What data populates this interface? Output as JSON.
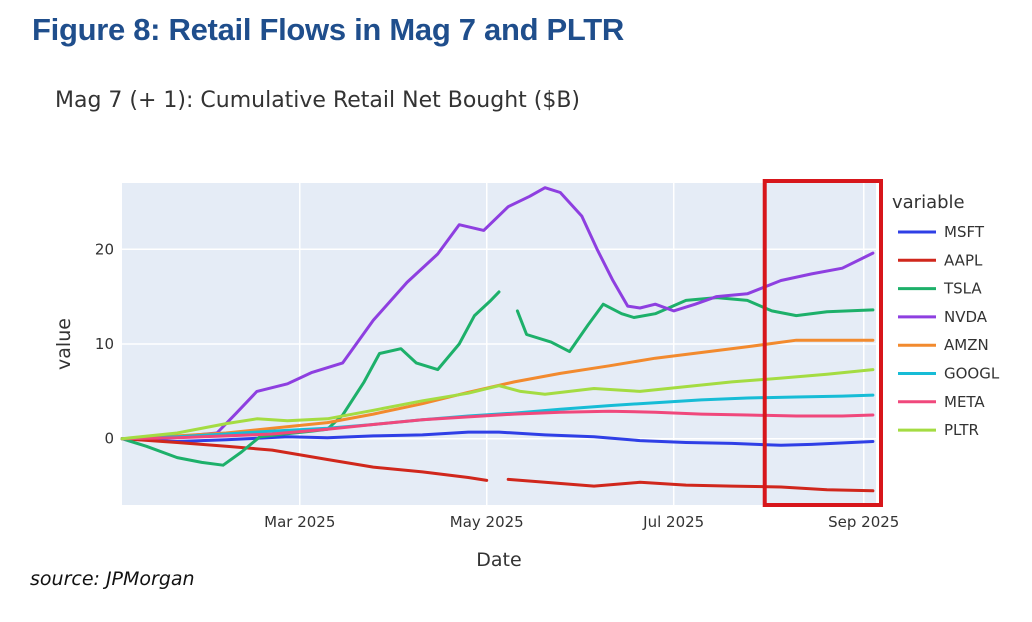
{
  "figure_title": "Figure 8: Retail Flows in Mag 7 and PLTR",
  "source": "source: JPMorgan",
  "colors": {
    "plot_bg": "#e5ecf6",
    "grid": "#ffffff",
    "highlight_box": "#d7161b",
    "title": "#1f4e8c"
  },
  "chart_data": {
    "type": "line",
    "title": "Mag 7 (+ 1): Cumulative Retail Net Bought ($B)",
    "xlabel": "Date",
    "ylabel": "value",
    "legend_title": "variable",
    "legend_position": "right",
    "grid": true,
    "xlim": [
      "2025-01-02",
      "2025-09-05"
    ],
    "ylim": [
      -7,
      27
    ],
    "xticks": [
      {
        "date": "2025-03-01",
        "label": "Mar 2025"
      },
      {
        "date": "2025-05-01",
        "label": "May 2025"
      },
      {
        "date": "2025-07-01",
        "label": "Jul 2025"
      },
      {
        "date": "2025-09-01",
        "label": "Sep 2025"
      }
    ],
    "yticks": [
      0,
      10,
      20
    ],
    "highlight_range": [
      "2025-08-01",
      "2025-09-05"
    ],
    "series": [
      {
        "name": "MSFT",
        "color": "#2f3fe6",
        "points": [
          [
            "2025-01-02",
            0
          ],
          [
            "2025-01-20",
            -0.3
          ],
          [
            "2025-02-05",
            -0.1
          ],
          [
            "2025-02-25",
            0.2
          ],
          [
            "2025-03-10",
            0.1
          ],
          [
            "2025-03-25",
            0.3
          ],
          [
            "2025-04-10",
            0.4
          ],
          [
            "2025-04-25",
            0.7
          ],
          [
            "2025-05-05",
            0.7
          ],
          [
            "2025-05-20",
            0.4
          ],
          [
            "2025-06-05",
            0.2
          ],
          [
            "2025-06-20",
            -0.2
          ],
          [
            "2025-07-05",
            -0.4
          ],
          [
            "2025-07-20",
            -0.5
          ],
          [
            "2025-08-05",
            -0.7
          ],
          [
            "2025-08-15",
            -0.6
          ],
          [
            "2025-09-04",
            -0.3
          ]
        ]
      },
      {
        "name": "AAPL",
        "color": "#d0271c",
        "points": [
          [
            "2025-01-02",
            0
          ],
          [
            "2025-01-20",
            -0.4
          ],
          [
            "2025-02-05",
            -0.8
          ],
          [
            "2025-02-20",
            -1.2
          ],
          [
            "2025-03-10",
            -2.2
          ],
          [
            "2025-03-25",
            -3.0
          ],
          [
            "2025-04-10",
            -3.5
          ],
          [
            "2025-04-25",
            -4.1
          ],
          [
            "2025-05-01",
            -4.4
          ],
          null,
          [
            "2025-05-08",
            -4.3
          ],
          [
            "2025-05-20",
            -4.6
          ],
          [
            "2025-06-05",
            -5.0
          ],
          [
            "2025-06-20",
            -4.6
          ],
          [
            "2025-07-05",
            -4.9
          ],
          [
            "2025-07-20",
            -5.0
          ],
          [
            "2025-08-05",
            -5.1
          ],
          [
            "2025-08-20",
            -5.4
          ],
          [
            "2025-09-04",
            -5.5
          ]
        ]
      },
      {
        "name": "TSLA",
        "color": "#1db06a",
        "points": [
          [
            "2025-01-02",
            0
          ],
          [
            "2025-01-10",
            -0.8
          ],
          [
            "2025-01-20",
            -2.0
          ],
          [
            "2025-01-28",
            -2.5
          ],
          [
            "2025-02-04",
            -2.8
          ],
          [
            "2025-02-10",
            -1.4
          ],
          [
            "2025-02-16",
            0.2
          ],
          [
            "2025-02-24",
            0.5
          ],
          [
            "2025-03-05",
            0.8
          ],
          [
            "2025-03-10",
            1.0
          ],
          [
            "2025-03-15",
            2.5
          ],
          [
            "2025-03-22",
            6.0
          ],
          [
            "2025-03-27",
            9.0
          ],
          [
            "2025-04-03",
            9.5
          ],
          [
            "2025-04-08",
            8.0
          ],
          [
            "2025-04-15",
            7.3
          ],
          [
            "2025-04-22",
            10.0
          ],
          [
            "2025-04-27",
            13.0
          ],
          [
            "2025-05-02",
            14.5
          ],
          [
            "2025-05-05",
            15.5
          ],
          null,
          [
            "2025-05-11",
            13.5
          ],
          [
            "2025-05-14",
            11.0
          ],
          [
            "2025-05-22",
            10.2
          ],
          [
            "2025-05-28",
            9.2
          ],
          [
            "2025-06-03",
            12.0
          ],
          [
            "2025-06-08",
            14.2
          ],
          [
            "2025-06-14",
            13.2
          ],
          [
            "2025-06-18",
            12.8
          ],
          [
            "2025-06-25",
            13.2
          ],
          [
            "2025-07-05",
            14.6
          ],
          [
            "2025-07-15",
            14.9
          ],
          [
            "2025-07-25",
            14.6
          ],
          [
            "2025-08-02",
            13.5
          ],
          [
            "2025-08-10",
            13.0
          ],
          [
            "2025-08-20",
            13.4
          ],
          [
            "2025-09-04",
            13.6
          ]
        ]
      },
      {
        "name": "NVDA",
        "color": "#8e3fe0",
        "points": [
          [
            "2025-01-02",
            0
          ],
          [
            "2025-01-20",
            0.2
          ],
          [
            "2025-02-02",
            0.6
          ],
          [
            "2025-02-08",
            2.6
          ],
          [
            "2025-02-15",
            5.0
          ],
          [
            "2025-02-25",
            5.8
          ],
          [
            "2025-03-05",
            7.0
          ],
          [
            "2025-03-15",
            8.0
          ],
          [
            "2025-03-25",
            12.5
          ],
          [
            "2025-04-05",
            16.5
          ],
          [
            "2025-04-15",
            19.5
          ],
          [
            "2025-04-22",
            22.6
          ],
          [
            "2025-04-30",
            22.0
          ],
          [
            "2025-05-08",
            24.5
          ],
          [
            "2025-05-15",
            25.6
          ],
          [
            "2025-05-20",
            26.5
          ],
          [
            "2025-05-25",
            26.0
          ],
          [
            "2025-06-01",
            23.5
          ],
          [
            "2025-06-06",
            20.0
          ],
          [
            "2025-06-11",
            16.8
          ],
          [
            "2025-06-16",
            14.0
          ],
          [
            "2025-06-20",
            13.8
          ],
          [
            "2025-06-25",
            14.2
          ],
          [
            "2025-07-01",
            13.5
          ],
          [
            "2025-07-08",
            14.2
          ],
          [
            "2025-07-15",
            15.0
          ],
          [
            "2025-07-25",
            15.3
          ],
          [
            "2025-08-05",
            16.7
          ],
          [
            "2025-08-15",
            17.4
          ],
          [
            "2025-08-25",
            18.0
          ],
          [
            "2025-09-04",
            19.6
          ]
        ]
      },
      {
        "name": "AMZN",
        "color": "#f28a2e",
        "points": [
          [
            "2025-01-02",
            0
          ],
          [
            "2025-01-20",
            0.3
          ],
          [
            "2025-02-05",
            0.6
          ],
          [
            "2025-02-20",
            1.1
          ],
          [
            "2025-03-10",
            1.7
          ],
          [
            "2025-03-25",
            2.6
          ],
          [
            "2025-04-10",
            3.7
          ],
          [
            "2025-04-25",
            4.9
          ],
          [
            "2025-05-10",
            6.0
          ],
          [
            "2025-05-25",
            6.9
          ],
          [
            "2025-06-10",
            7.7
          ],
          [
            "2025-06-25",
            8.5
          ],
          [
            "2025-07-10",
            9.1
          ],
          [
            "2025-07-25",
            9.7
          ],
          [
            "2025-08-10",
            10.4
          ],
          [
            "2025-08-25",
            10.4
          ],
          [
            "2025-09-04",
            10.4
          ]
        ]
      },
      {
        "name": "GOOGL",
        "color": "#17bcd6",
        "points": [
          [
            "2025-01-02",
            0
          ],
          [
            "2025-01-20",
            0.2
          ],
          [
            "2025-02-05",
            0.5
          ],
          [
            "2025-02-20",
            0.8
          ],
          [
            "2025-03-10",
            1.1
          ],
          [
            "2025-03-25",
            1.5
          ],
          [
            "2025-04-10",
            2.0
          ],
          [
            "2025-04-25",
            2.4
          ],
          [
            "2025-05-10",
            2.7
          ],
          [
            "2025-05-25",
            3.1
          ],
          [
            "2025-06-10",
            3.5
          ],
          [
            "2025-06-25",
            3.8
          ],
          [
            "2025-07-10",
            4.1
          ],
          [
            "2025-07-25",
            4.3
          ],
          [
            "2025-08-10",
            4.4
          ],
          [
            "2025-08-25",
            4.5
          ],
          [
            "2025-09-04",
            4.6
          ]
        ]
      },
      {
        "name": "META",
        "color": "#f0487c",
        "points": [
          [
            "2025-01-02",
            0
          ],
          [
            "2025-01-20",
            0.1
          ],
          [
            "2025-02-05",
            0.3
          ],
          [
            "2025-02-20",
            0.5
          ],
          [
            "2025-03-10",
            1.0
          ],
          [
            "2025-03-25",
            1.5
          ],
          [
            "2025-04-10",
            2.0
          ],
          [
            "2025-04-25",
            2.3
          ],
          [
            "2025-05-10",
            2.6
          ],
          [
            "2025-05-25",
            2.8
          ],
          [
            "2025-06-10",
            2.9
          ],
          [
            "2025-06-25",
            2.8
          ],
          [
            "2025-07-10",
            2.6
          ],
          [
            "2025-07-25",
            2.5
          ],
          [
            "2025-08-10",
            2.4
          ],
          [
            "2025-08-25",
            2.4
          ],
          [
            "2025-09-04",
            2.5
          ]
        ]
      },
      {
        "name": "PLTR",
        "color": "#a4dc42",
        "points": [
          [
            "2025-01-02",
            0
          ],
          [
            "2025-01-20",
            0.6
          ],
          [
            "2025-02-05",
            1.6
          ],
          [
            "2025-02-15",
            2.1
          ],
          [
            "2025-02-25",
            1.9
          ],
          [
            "2025-03-10",
            2.1
          ],
          [
            "2025-03-25",
            3.0
          ],
          [
            "2025-04-10",
            4.0
          ],
          [
            "2025-04-25",
            4.8
          ],
          [
            "2025-05-05",
            5.6
          ],
          [
            "2025-05-12",
            5.0
          ],
          [
            "2025-05-20",
            4.7
          ],
          [
            "2025-06-05",
            5.3
          ],
          [
            "2025-06-20",
            5.0
          ],
          [
            "2025-07-05",
            5.5
          ],
          [
            "2025-07-20",
            6.0
          ],
          [
            "2025-08-05",
            6.4
          ],
          [
            "2025-08-20",
            6.8
          ],
          [
            "2025-09-04",
            7.3
          ]
        ]
      }
    ]
  }
}
